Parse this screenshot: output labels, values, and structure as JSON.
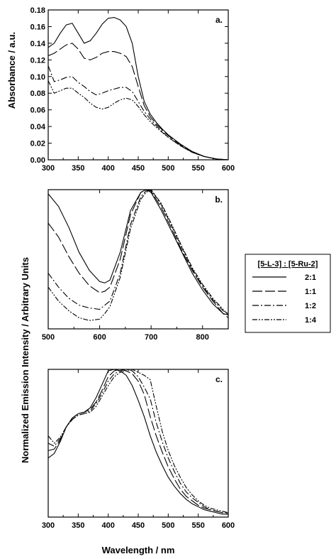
{
  "figure": {
    "ylabel_left_top": "Absorbance / a.u.",
    "ylabel_left_bottom": "Normalized Emission Intensity / Arbitrary Units",
    "xlabel_bottom": "Wavelength / nm"
  },
  "legend": {
    "title": "[5-L-3] : [5-Ru-2]",
    "entries": [
      {
        "label": "2:1",
        "dash": "solid"
      },
      {
        "label": "1:1",
        "dash": "long-dash"
      },
      {
        "label": "1:2",
        "dash": "dash-dot"
      },
      {
        "label": "1:4",
        "dash": "dash-dot-dot"
      }
    ]
  },
  "chart_data": [
    {
      "type": "line",
      "panel_label": "a.",
      "xlim": [
        300,
        600
      ],
      "ylim": [
        0,
        0.18
      ],
      "xticks": [
        300,
        350,
        400,
        450,
        500,
        550,
        600
      ],
      "yticks": [
        0.0,
        0.02,
        0.04,
        0.06,
        0.08,
        0.1,
        0.12,
        0.14,
        0.16,
        0.18
      ],
      "ytick_labels": [
        "0.00",
        "0.02",
        "0.04",
        "0.06",
        "0.08",
        "0.10",
        "0.12",
        "0.14",
        "0.16",
        "0.18"
      ],
      "series": [
        {
          "name": "2:1",
          "x": [
            300,
            310,
            320,
            330,
            340,
            350,
            360,
            370,
            380,
            390,
            400,
            410,
            420,
            430,
            440,
            450,
            460,
            470,
            480,
            490,
            500,
            520,
            540,
            560,
            580,
            600
          ],
          "y": [
            0.135,
            0.14,
            0.152,
            0.162,
            0.164,
            0.152,
            0.14,
            0.143,
            0.152,
            0.163,
            0.17,
            0.171,
            0.168,
            0.16,
            0.14,
            0.1,
            0.07,
            0.055,
            0.045,
            0.037,
            0.03,
            0.019,
            0.01,
            0.004,
            0.001,
            0.0
          ]
        },
        {
          "name": "1:1",
          "x": [
            300,
            310,
            320,
            330,
            340,
            350,
            360,
            370,
            380,
            390,
            400,
            410,
            420,
            430,
            440,
            450,
            460,
            470,
            480,
            490,
            500,
            520,
            540,
            560,
            580,
            600
          ],
          "y": [
            0.125,
            0.128,
            0.133,
            0.138,
            0.14,
            0.133,
            0.122,
            0.12,
            0.123,
            0.128,
            0.13,
            0.13,
            0.128,
            0.124,
            0.112,
            0.088,
            0.065,
            0.052,
            0.043,
            0.036,
            0.029,
            0.018,
            0.009,
            0.004,
            0.001,
            0.0
          ]
        },
        {
          "name": "1:2",
          "x": [
            300,
            310,
            320,
            330,
            340,
            350,
            360,
            370,
            380,
            390,
            400,
            410,
            420,
            430,
            440,
            450,
            460,
            470,
            480,
            490,
            500,
            520,
            540,
            560,
            580,
            600
          ],
          "y": [
            0.113,
            0.094,
            0.096,
            0.099,
            0.1,
            0.093,
            0.088,
            0.082,
            0.078,
            0.08,
            0.083,
            0.085,
            0.087,
            0.087,
            0.082,
            0.07,
            0.058,
            0.049,
            0.041,
            0.034,
            0.027,
            0.017,
            0.009,
            0.004,
            0.001,
            0.0
          ]
        },
        {
          "name": "1:4",
          "x": [
            300,
            310,
            320,
            330,
            340,
            350,
            360,
            370,
            380,
            390,
            400,
            410,
            420,
            430,
            440,
            450,
            460,
            470,
            480,
            490,
            500,
            520,
            540,
            560,
            580,
            600
          ],
          "y": [
            0.095,
            0.08,
            0.083,
            0.086,
            0.086,
            0.08,
            0.075,
            0.068,
            0.063,
            0.061,
            0.063,
            0.068,
            0.072,
            0.074,
            0.072,
            0.064,
            0.054,
            0.046,
            0.039,
            0.033,
            0.027,
            0.017,
            0.009,
            0.004,
            0.001,
            0.0
          ]
        }
      ]
    },
    {
      "type": "line",
      "panel_label": "b.",
      "xlim": [
        500,
        850
      ],
      "ylim": [
        0,
        1
      ],
      "xticks": [
        500,
        600,
        700,
        800
      ],
      "yticks": [],
      "series": [
        {
          "name": "2:1",
          "x": [
            500,
            520,
            540,
            560,
            580,
            600,
            610,
            620,
            640,
            660,
            680,
            690,
            700,
            720,
            740,
            760,
            780,
            800,
            820,
            840,
            850
          ],
          "y": [
            0.97,
            0.88,
            0.73,
            0.55,
            0.42,
            0.34,
            0.33,
            0.35,
            0.55,
            0.85,
            0.98,
            1.0,
            0.98,
            0.85,
            0.7,
            0.55,
            0.4,
            0.28,
            0.18,
            0.11,
            0.1
          ]
        },
        {
          "name": "1:1",
          "x": [
            500,
            520,
            540,
            560,
            580,
            600,
            610,
            620,
            640,
            660,
            680,
            690,
            700,
            720,
            740,
            760,
            780,
            800,
            820,
            840,
            850
          ],
          "y": [
            0.76,
            0.66,
            0.52,
            0.4,
            0.31,
            0.26,
            0.27,
            0.3,
            0.5,
            0.82,
            0.98,
            1.0,
            0.99,
            0.87,
            0.72,
            0.56,
            0.42,
            0.3,
            0.2,
            0.11,
            0.08
          ]
        },
        {
          "name": "1:2",
          "x": [
            500,
            520,
            540,
            560,
            580,
            600,
            610,
            620,
            640,
            660,
            680,
            690,
            700,
            720,
            740,
            760,
            780,
            800,
            820,
            840,
            850
          ],
          "y": [
            0.4,
            0.3,
            0.22,
            0.17,
            0.15,
            0.14,
            0.17,
            0.2,
            0.4,
            0.75,
            0.95,
            0.99,
            1.0,
            0.89,
            0.74,
            0.58,
            0.43,
            0.31,
            0.21,
            0.13,
            0.11
          ]
        },
        {
          "name": "1:4",
          "x": [
            500,
            520,
            540,
            560,
            580,
            600,
            610,
            620,
            640,
            660,
            680,
            690,
            700,
            720,
            740,
            760,
            780,
            800,
            820,
            840,
            850
          ],
          "y": [
            0.3,
            0.2,
            0.13,
            0.08,
            0.06,
            0.07,
            0.11,
            0.16,
            0.37,
            0.72,
            0.93,
            0.98,
            1.0,
            0.9,
            0.75,
            0.59,
            0.44,
            0.32,
            0.22,
            0.14,
            0.1
          ]
        }
      ]
    },
    {
      "type": "line",
      "panel_label": "c.",
      "xlim": [
        300,
        600
      ],
      "ylim": [
        0,
        1
      ],
      "xticks": [
        300,
        350,
        400,
        450,
        500,
        550,
        600
      ],
      "yticks": [],
      "series": [
        {
          "name": "2:1",
          "x": [
            300,
            310,
            320,
            330,
            340,
            350,
            360,
            370,
            380,
            390,
            400,
            410,
            420,
            430,
            440,
            450,
            460,
            470,
            480,
            490,
            500,
            510,
            520,
            530,
            540,
            550,
            560,
            570,
            580,
            590,
            600
          ],
          "y": [
            0.4,
            0.43,
            0.51,
            0.61,
            0.67,
            0.7,
            0.71,
            0.74,
            0.81,
            0.9,
            0.99,
            1.0,
            0.99,
            0.96,
            0.89,
            0.79,
            0.68,
            0.55,
            0.44,
            0.35,
            0.27,
            0.21,
            0.16,
            0.12,
            0.09,
            0.07,
            0.05,
            0.04,
            0.03,
            0.02,
            0.02
          ]
        },
        {
          "name": "1:1",
          "x": [
            300,
            310,
            320,
            330,
            340,
            350,
            360,
            370,
            380,
            390,
            400,
            410,
            420,
            430,
            440,
            450,
            460,
            470,
            480,
            490,
            500,
            510,
            520,
            530,
            540,
            550,
            560,
            570,
            580,
            590,
            600
          ],
          "y": [
            0.45,
            0.46,
            0.52,
            0.61,
            0.67,
            0.7,
            0.71,
            0.73,
            0.78,
            0.86,
            0.95,
            0.99,
            1.0,
            0.99,
            0.97,
            0.92,
            0.83,
            0.68,
            0.55,
            0.44,
            0.34,
            0.26,
            0.19,
            0.14,
            0.11,
            0.08,
            0.06,
            0.05,
            0.04,
            0.03,
            0.02
          ]
        },
        {
          "name": "1:2",
          "x": [
            300,
            310,
            320,
            330,
            340,
            350,
            360,
            370,
            380,
            390,
            400,
            410,
            420,
            430,
            440,
            450,
            460,
            470,
            480,
            490,
            500,
            510,
            520,
            530,
            540,
            550,
            560,
            570,
            580,
            590,
            600
          ],
          "y": [
            0.5,
            0.48,
            0.53,
            0.61,
            0.66,
            0.69,
            0.7,
            0.72,
            0.77,
            0.84,
            0.92,
            0.97,
            0.99,
            1.0,
            0.99,
            0.95,
            0.88,
            0.8,
            0.64,
            0.51,
            0.4,
            0.31,
            0.23,
            0.17,
            0.13,
            0.1,
            0.07,
            0.05,
            0.04,
            0.03,
            0.03
          ]
        },
        {
          "name": "1:4",
          "x": [
            300,
            310,
            320,
            330,
            340,
            350,
            360,
            370,
            380,
            390,
            400,
            410,
            420,
            430,
            440,
            450,
            460,
            470,
            480,
            490,
            500,
            510,
            520,
            530,
            540,
            550,
            560,
            570,
            580,
            590,
            600
          ],
          "y": [
            0.55,
            0.5,
            0.54,
            0.61,
            0.66,
            0.69,
            0.7,
            0.71,
            0.75,
            0.82,
            0.89,
            0.95,
            0.98,
            0.99,
            1.0,
            0.98,
            0.96,
            0.93,
            0.75,
            0.58,
            0.45,
            0.35,
            0.27,
            0.2,
            0.15,
            0.11,
            0.08,
            0.06,
            0.05,
            0.04,
            0.03
          ]
        }
      ]
    }
  ]
}
